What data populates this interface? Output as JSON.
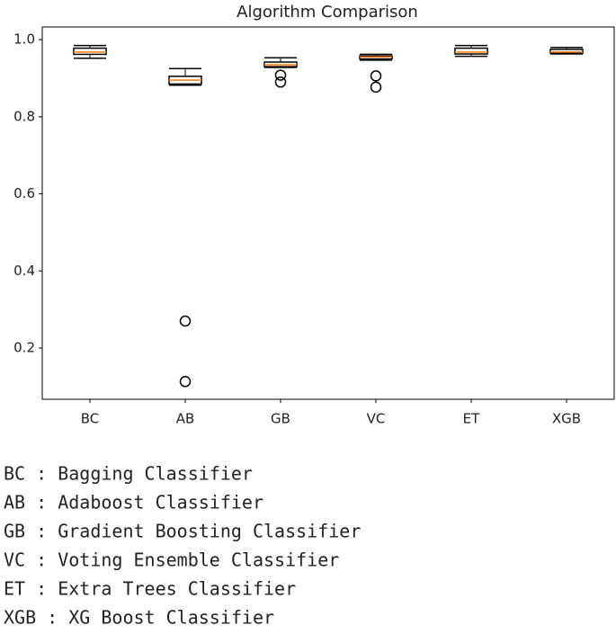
{
  "chart_data": {
    "type": "box",
    "title": "Algorithm Comparison",
    "categories": [
      "BC",
      "AB",
      "GB",
      "VC",
      "ET",
      "XGB"
    ],
    "boxes": [
      {
        "low": 0.952,
        "q1": 0.962,
        "median": 0.968,
        "q3": 0.978,
        "high": 0.985,
        "outliers": []
      },
      {
        "low": 0.882,
        "q1": 0.885,
        "median": 0.895,
        "q3": 0.905,
        "high": 0.925,
        "outliers": [
          0.27,
          0.113
        ]
      },
      {
        "low": 0.928,
        "q1": 0.93,
        "median": 0.935,
        "q3": 0.942,
        "high": 0.953,
        "outliers": [
          0.908,
          0.89
        ]
      },
      {
        "low": 0.947,
        "q1": 0.95,
        "median": 0.955,
        "q3": 0.958,
        "high": 0.962,
        "outliers": [
          0.906,
          0.877
        ]
      },
      {
        "low": 0.957,
        "q1": 0.963,
        "median": 0.968,
        "q3": 0.978,
        "high": 0.985,
        "outliers": []
      },
      {
        "low": 0.963,
        "q1": 0.965,
        "median": 0.968,
        "q3": 0.975,
        "high": 0.98,
        "outliers": []
      }
    ],
    "box_color": "#000000",
    "median_color": "#ff7f0e",
    "ylim": [
      0.067,
      1.033
    ],
    "yticks": [
      0.2,
      0.4,
      0.6,
      0.8,
      {
        "value": 1,
        "label": "1.0"
      }
    ],
    "notes": [
      "BC : Bagging Classifier",
      "AB : Adaboost Classifier",
      "GB : Gradient Boosting Classifier",
      "VC : Voting Ensemble Classifier",
      "ET : Extra Trees Classifier",
      "XGB : XG Boost Classifier"
    ]
  }
}
